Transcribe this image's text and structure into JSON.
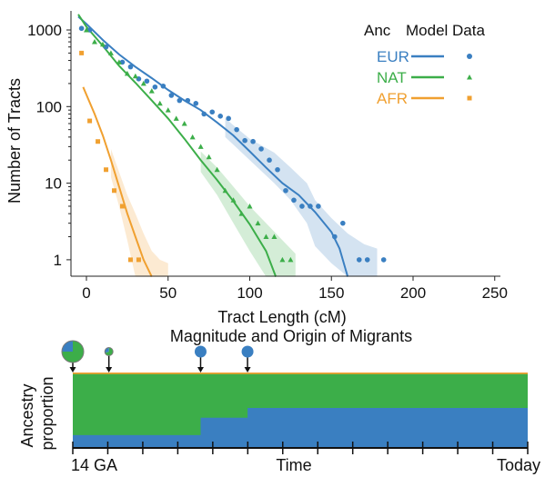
{
  "chart_data": [
    {
      "type": "scatter",
      "xlabel": "Tract Length (cM)",
      "ylabel": "Number of Tracts",
      "x_ticks": [
        "0",
        "50",
        "100",
        "150",
        "200",
        "250"
      ],
      "y_ticks": [
        "1",
        "10",
        "100",
        "1000"
      ],
      "y_scale": "log",
      "xlim": [
        -10,
        260
      ],
      "ylim": [
        0.6,
        1500
      ],
      "legend": {
        "placement": "top-right",
        "headers": [
          "Anc",
          "Model",
          "Data"
        ],
        "entries": [
          "EUR",
          "NAT",
          "AFR"
        ]
      },
      "series": [
        {
          "name": "EUR",
          "color": "#3a7fc1",
          "marker": "circle",
          "model": [
            [
              -5,
              1500
            ],
            [
              0,
              1200
            ],
            [
              10,
              740
            ],
            [
              20,
              480
            ],
            [
              30,
              330
            ],
            [
              40,
              235
            ],
            [
              50,
              165
            ],
            [
              60,
              120
            ],
            [
              70,
              90
            ],
            [
              80,
              62
            ],
            [
              90,
              42
            ],
            [
              100,
              26
            ],
            [
              110,
              16
            ],
            [
              120,
              10
            ],
            [
              130,
              7
            ],
            [
              140,
              4.2
            ],
            [
              150,
              2.3
            ],
            [
              155,
              1.4
            ],
            [
              160,
              0.6
            ]
          ],
          "band_upper": [
            [
              85,
              70
            ],
            [
              100,
              38
            ],
            [
              115,
              25
            ],
            [
              125,
              16
            ],
            [
              135,
              10
            ],
            [
              140,
              6
            ],
            [
              150,
              3.5
            ],
            [
              160,
              2.2
            ],
            [
              170,
              1.6
            ],
            [
              178,
              1.4
            ]
          ],
          "band_lower": [
            [
              85,
              40
            ],
            [
              100,
              20
            ],
            [
              115,
              10
            ],
            [
              125,
              6
            ],
            [
              135,
              3
            ],
            [
              140,
              1.5
            ],
            [
              150,
              0.9
            ],
            [
              160,
              0.6
            ],
            [
              178,
              0.6
            ]
          ],
          "points": [
            [
              -3,
              1050
            ],
            [
              2,
              1000
            ],
            [
              12,
              600
            ],
            [
              22,
              380
            ],
            [
              27,
              330
            ],
            [
              32,
              230
            ],
            [
              37,
              215
            ],
            [
              42,
              180
            ],
            [
              47,
              185
            ],
            [
              52,
              140
            ],
            [
              57,
              120
            ],
            [
              62,
              120
            ],
            [
              67,
              110
            ],
            [
              72,
              80
            ],
            [
              77,
              85
            ],
            [
              82,
              75
            ],
            [
              87,
              70
            ],
            [
              92,
              50
            ],
            [
              97,
              36
            ],
            [
              102,
              35
            ],
            [
              107,
              28
            ],
            [
              112,
              20
            ],
            [
              117,
              15
            ],
            [
              122,
              8
            ],
            [
              127,
              6
            ],
            [
              132,
              5
            ],
            [
              137,
              5
            ],
            [
              142,
              5
            ],
            [
              152,
              2
            ],
            [
              157,
              3
            ],
            [
              167,
              1
            ],
            [
              172,
              1
            ],
            [
              182,
              1
            ]
          ]
        },
        {
          "name": "NAT",
          "color": "#3cae49",
          "marker": "triangle",
          "model": [
            [
              -5,
              1600
            ],
            [
              0,
              1100
            ],
            [
              10,
              620
            ],
            [
              20,
              340
            ],
            [
              30,
              205
            ],
            [
              40,
              120
            ],
            [
              50,
              70
            ],
            [
              60,
              38
            ],
            [
              70,
              20
            ],
            [
              80,
              11
            ],
            [
              90,
              5.8
            ],
            [
              100,
              2.9
            ],
            [
              110,
              1.3
            ],
            [
              116,
              0.6
            ]
          ],
          "band_upper": [
            [
              70,
              26
            ],
            [
              80,
              16
            ],
            [
              90,
              9
            ],
            [
              100,
              5
            ],
            [
              110,
              3
            ],
            [
              120,
              1.8
            ],
            [
              128,
              1.2
            ]
          ],
          "band_lower": [
            [
              70,
              14
            ],
            [
              80,
              7
            ],
            [
              90,
              3
            ],
            [
              100,
              1.3
            ],
            [
              110,
              0.6
            ],
            [
              128,
              0.6
            ]
          ],
          "points": [
            [
              0,
              1000
            ],
            [
              5,
              700
            ],
            [
              10,
              650
            ],
            [
              15,
              500
            ],
            [
              20,
              380
            ],
            [
              25,
              270
            ],
            [
              30,
              250
            ],
            [
              35,
              200
            ],
            [
              40,
              160
            ],
            [
              45,
              110
            ],
            [
              50,
              90
            ],
            [
              55,
              70
            ],
            [
              60,
              60
            ],
            [
              65,
              40
            ],
            [
              70,
              30
            ],
            [
              75,
              22
            ],
            [
              80,
              15
            ],
            [
              85,
              8
            ],
            [
              90,
              6
            ],
            [
              95,
              4
            ],
            [
              100,
              5
            ],
            [
              105,
              3
            ],
            [
              110,
              2
            ],
            [
              115,
              2
            ],
            [
              120,
              1
            ],
            [
              125,
              1
            ]
          ]
        },
        {
          "name": "AFR",
          "color": "#f0a030",
          "marker": "square",
          "model": [
            [
              -2,
              180
            ],
            [
              5,
              80
            ],
            [
              10,
              42
            ],
            [
              15,
              20
            ],
            [
              20,
              9
            ],
            [
              25,
              4
            ],
            [
              30,
              2
            ],
            [
              35,
              1
            ],
            [
              40,
              0.6
            ]
          ],
          "band_upper": [
            [
              15,
              28
            ],
            [
              20,
              14
            ],
            [
              25,
              7
            ],
            [
              30,
              4
            ],
            [
              35,
              2.2
            ],
            [
              40,
              1.3
            ],
            [
              45,
              1
            ],
            [
              50,
              0.9
            ]
          ],
          "band_lower": [
            [
              15,
              12
            ],
            [
              20,
              5
            ],
            [
              25,
              1.8
            ],
            [
              30,
              0.6
            ],
            [
              50,
              0.6
            ]
          ],
          "points": [
            [
              -3,
              500
            ],
            [
              2,
              65
            ],
            [
              7,
              35
            ],
            [
              12,
              15
            ],
            [
              17,
              8
            ],
            [
              22,
              5
            ],
            [
              27,
              1
            ],
            [
              32,
              1
            ]
          ]
        }
      ]
    },
    {
      "type": "area",
      "title": "Magnitude and Origin of Migrants",
      "ylabel": "Ancestry proportion",
      "xlabel": "Time",
      "x_labels": {
        "start": "14 GA",
        "end": "Today"
      },
      "layers": [
        {
          "name": "EUR",
          "color": "#3a7fc1",
          "steps": [
            [
              0,
              0.17
            ],
            [
              1.77,
              0.17
            ],
            [
              1.77,
              0.4
            ],
            [
              2.42,
              0.4
            ],
            [
              2.42,
              0.53
            ],
            [
              6.3,
              0.53
            ]
          ]
        },
        {
          "name": "NAT",
          "color": "#3cae49",
          "steps": [
            [
              0,
              0.98
            ],
            [
              6.3,
              0.98
            ]
          ]
        },
        {
          "name": "AFR",
          "color": "#f0a030",
          "steps": [
            [
              0,
              1.0
            ],
            [
              6.3,
              1.0
            ]
          ]
        }
      ],
      "migration_events": [
        {
          "time": 0,
          "size": "large",
          "composition": {
            "NAT": 0.75,
            "EUR": 0.25
          }
        },
        {
          "time": 0.5,
          "size": "small",
          "composition": {
            "NAT": 0.7,
            "EUR": 0.3
          }
        },
        {
          "time": 1.77,
          "size": "medium",
          "composition": {
            "EUR": 1.0
          }
        },
        {
          "time": 2.42,
          "size": "medium",
          "composition": {
            "EUR": 1.0
          }
        }
      ],
      "tick_count": 14
    }
  ]
}
